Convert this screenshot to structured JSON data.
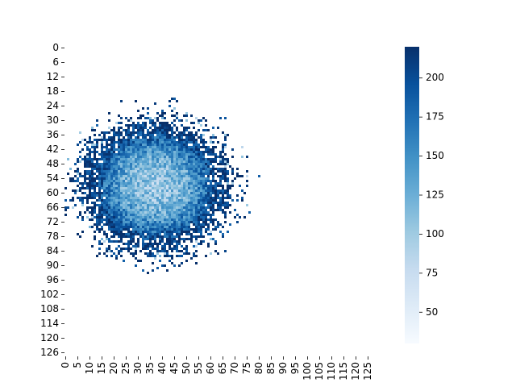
{
  "chart_data": {
    "type": "heatmap",
    "title": "",
    "xlabel": "",
    "ylabel": "",
    "grid": false,
    "rows": 128,
    "cols": 128,
    "x_tick_labels": [
      "0",
      "5",
      "10",
      "15",
      "20",
      "25",
      "30",
      "35",
      "40",
      "45",
      "50",
      "55",
      "60",
      "65",
      "70",
      "75",
      "80",
      "85",
      "90",
      "95",
      "100",
      "105",
      "110",
      "115",
      "120",
      "125"
    ],
    "y_tick_labels": [
      "0",
      "6",
      "12",
      "18",
      "24",
      "30",
      "36",
      "42",
      "48",
      "54",
      "60",
      "66",
      "72",
      "78",
      "84",
      "90",
      "96",
      "102",
      "108",
      "114",
      "120",
      "126"
    ],
    "colorbar": {
      "min": 30,
      "max": 220,
      "tick_labels": [
        "50",
        "75",
        "100",
        "125",
        "150",
        "175",
        "200"
      ],
      "colormap": "Blues"
    },
    "cluster": {
      "center_col": 37,
      "center_row": 57,
      "radius_cols": 28,
      "radius_rows": 25,
      "center_value": 100,
      "edge_value": 215,
      "empty_cells": "blank (NaN) outside the scattered cluster"
    },
    "colors": {
      "low": "#f7fbff",
      "high": "#08306b"
    }
  }
}
